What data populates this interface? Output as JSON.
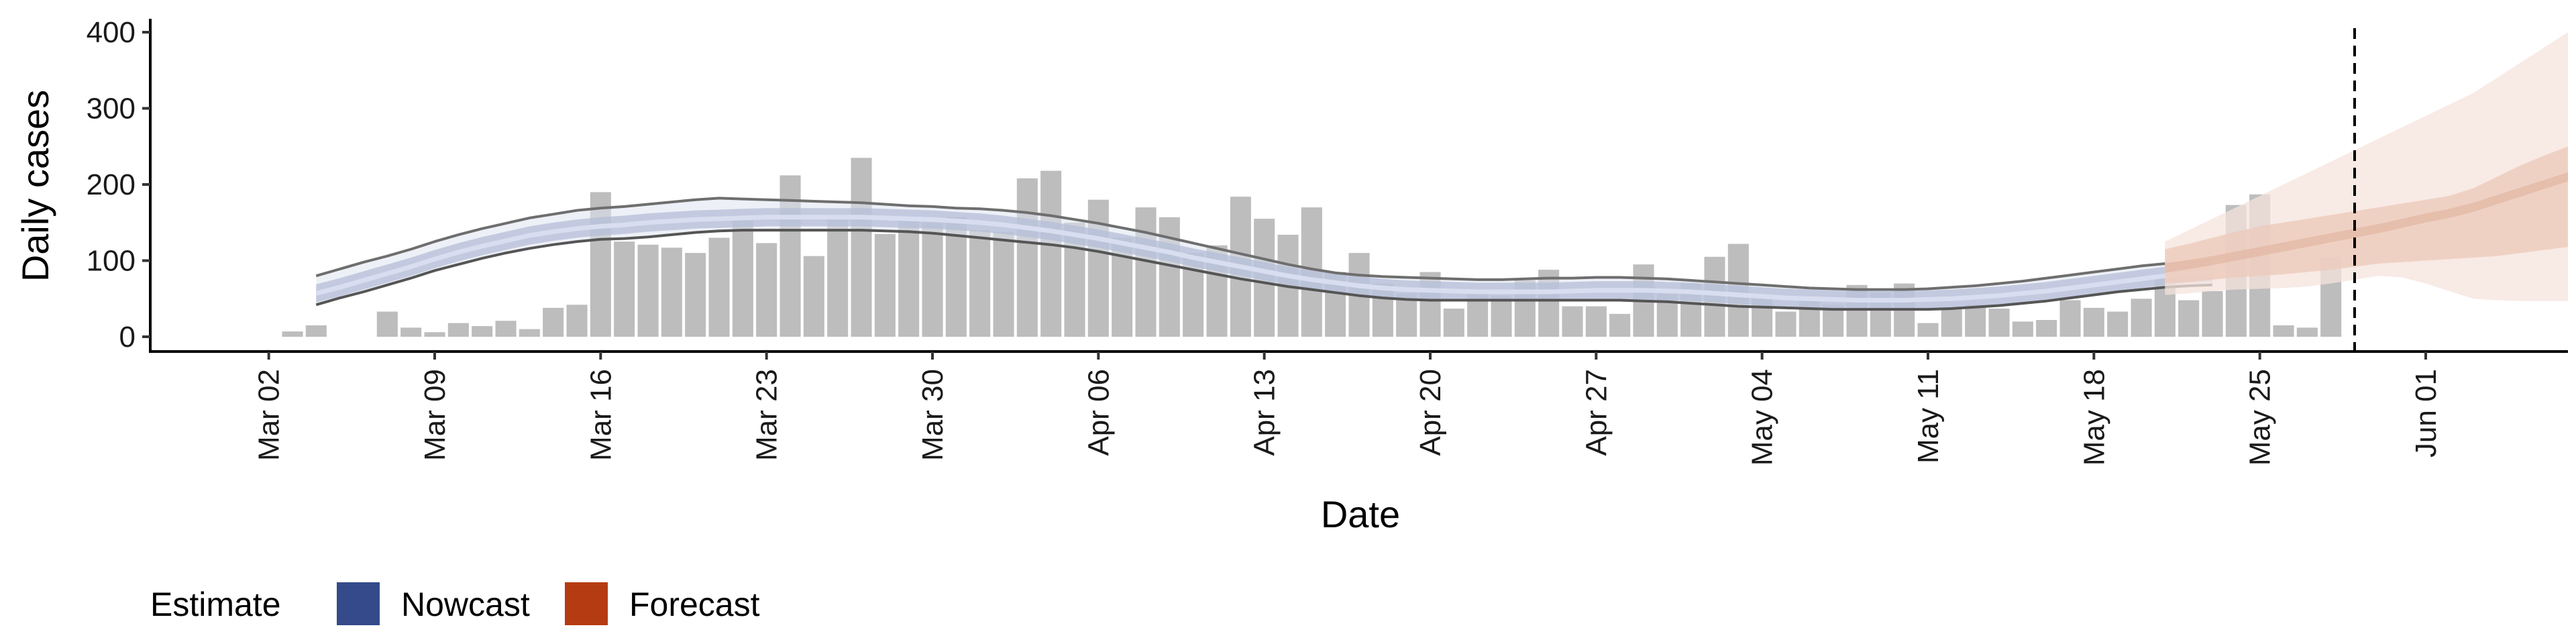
{
  "chart_data": {
    "type": "bar",
    "xlabel": "Date",
    "ylabel": "Daily cases",
    "ylim": [
      0,
      420
    ],
    "y_ticks": [
      0,
      100,
      200,
      300,
      400
    ],
    "y_tick_labels": [
      "0",
      "100",
      "200",
      "300",
      "400"
    ],
    "x_range": [
      "2020-02-26",
      "2020-06-07"
    ],
    "x_ticks": [
      "2020-03-02",
      "2020-03-09",
      "2020-03-16",
      "2020-03-23",
      "2020-03-30",
      "2020-04-06",
      "2020-04-13",
      "2020-04-20",
      "2020-04-27",
      "2020-05-04",
      "2020-05-11",
      "2020-05-18",
      "2020-05-25",
      "2020-06-01"
    ],
    "x_tick_labels": [
      "Mar 02",
      "Mar 09",
      "Mar 16",
      "Mar 23",
      "Mar 30",
      "Apr 06",
      "Apr 13",
      "Apr 20",
      "Apr 27",
      "May 04",
      "May 11",
      "May 18",
      "May 25",
      "Jun 01"
    ],
    "grid": false,
    "legend": {
      "title": "Estimate",
      "position": "bottom-left",
      "items": [
        {
          "label": "Nowcast",
          "color": "#354a8a"
        },
        {
          "label": "Forecast",
          "color": "#b53c12"
        }
      ]
    },
    "bar_color": "#bdbdbd",
    "bars": {
      "start_date": "2020-03-03",
      "values": [
        7,
        15,
        0,
        0,
        33,
        12,
        6,
        18,
        14,
        21,
        10,
        38,
        42,
        190,
        125,
        121,
        117,
        110,
        130,
        155,
        123,
        212,
        106,
        160,
        235,
        135,
        158,
        150,
        157,
        140,
        138,
        208,
        218,
        150,
        180,
        130,
        170,
        157,
        110,
        120,
        184,
        155,
        134,
        170,
        85,
        110,
        70,
        57,
        85,
        37,
        58,
        54,
        74,
        88,
        40,
        40,
        30,
        95,
        57,
        70,
        105,
        122,
        55,
        33,
        48,
        42,
        68,
        58,
        70,
        18,
        38,
        42,
        37,
        20,
        22,
        48,
        38,
        33,
        50,
        78,
        48,
        60,
        173,
        187,
        15,
        12,
        105
      ]
    },
    "nowcast": {
      "start_date": "2020-03-04",
      "median": [
        57,
        65,
        74,
        83,
        92,
        102,
        111,
        119,
        126,
        133,
        138,
        142,
        145,
        147,
        150,
        152,
        154,
        155,
        156,
        157,
        157,
        157,
        157,
        157,
        156,
        155,
        154,
        152,
        150,
        147,
        143,
        139,
        134,
        129,
        123,
        117,
        111,
        104,
        98,
        92,
        86,
        80,
        75,
        71,
        67,
        64,
        62,
        61,
        60,
        59,
        59,
        59,
        59,
        60,
        61,
        61,
        61,
        60,
        59,
        57,
        55,
        53,
        51,
        50,
        49,
        48,
        48,
        48,
        49,
        50,
        52,
        54,
        57,
        60,
        64,
        68,
        72,
        76,
        80,
        83,
        85
      ],
      "outer_lower": [
        42,
        51,
        59,
        68,
        77,
        87,
        95,
        103,
        110,
        116,
        121,
        125,
        128,
        129,
        131,
        134,
        137,
        139,
        140,
        140,
        140,
        140,
        140,
        140,
        139,
        138,
        136,
        133,
        130,
        127,
        124,
        121,
        117,
        112,
        106,
        100,
        94,
        88,
        82,
        76,
        71,
        66,
        62,
        58,
        54,
        51,
        49,
        48,
        48,
        48,
        48,
        48,
        48,
        48,
        48,
        48,
        47,
        46,
        44,
        42,
        40,
        39,
        38,
        37,
        36,
        36,
        36,
        36,
        36,
        37,
        39,
        41,
        44,
        47,
        51,
        55,
        59,
        62,
        65,
        67,
        68
      ],
      "outer_upper": [
        80,
        89,
        98,
        106,
        115,
        125,
        134,
        142,
        149,
        156,
        161,
        166,
        169,
        171,
        174,
        177,
        180,
        182,
        181,
        180,
        179,
        178,
        177,
        176,
        174,
        172,
        171,
        169,
        168,
        166,
        163,
        159,
        154,
        149,
        143,
        137,
        130,
        123,
        116,
        109,
        102,
        95,
        89,
        84,
        81,
        79,
        78,
        77,
        76,
        75,
        75,
        76,
        77,
        77,
        78,
        78,
        77,
        76,
        74,
        72,
        70,
        68,
        66,
        64,
        63,
        62,
        62,
        62,
        63,
        65,
        67,
        70,
        73,
        77,
        81,
        85,
        89,
        93,
        96,
        98,
        100
      ]
    },
    "forecast": {
      "start_date": "2020-05-21",
      "median": [
        90,
        95,
        100,
        106,
        112,
        118,
        124,
        130,
        136,
        142,
        149,
        156,
        162,
        170,
        180,
        190,
        200,
        210
      ],
      "inner_lower": [
        70,
        72,
        75,
        78,
        80,
        82,
        85,
        88,
        92,
        96,
        98,
        100,
        102,
        104,
        106,
        110,
        114,
        118
      ],
      "inner_upper": [
        115,
        122,
        130,
        138,
        145,
        150,
        155,
        160,
        165,
        170,
        175,
        180,
        185,
        195,
        210,
        225,
        238,
        250
      ],
      "outer_lower": [
        55,
        57,
        60,
        62,
        63,
        64,
        66,
        70,
        75,
        80,
        78,
        70,
        60,
        50,
        48,
        47,
        47,
        47
      ],
      "outer_upper": [
        125,
        140,
        155,
        170,
        185,
        200,
        215,
        230,
        245,
        260,
        275,
        290,
        305,
        320,
        340,
        360,
        380,
        400
      ]
    },
    "vline_date": "2020-05-29"
  }
}
